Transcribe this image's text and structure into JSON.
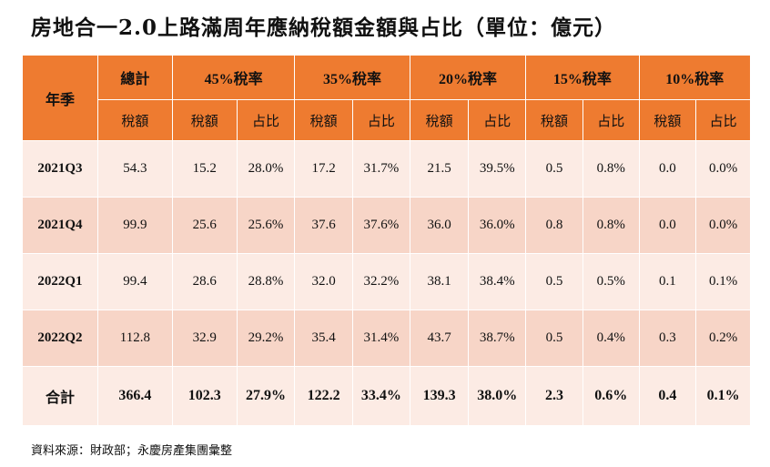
{
  "title": "房地合一2.0上路滿周年應納稅額金額與占比（單位：億元）",
  "header": {
    "season": "年季",
    "groups": [
      "總計",
      "45%稅率",
      "35%稅率",
      "20%稅率",
      "15%稅率",
      "10%稅率"
    ],
    "sub_tax": "稅額",
    "sub_share": "占比"
  },
  "rows": [
    {
      "quarter": "2021Q3",
      "values": [
        "54.3",
        "15.2",
        "28.0%",
        "17.2",
        "31.7%",
        "21.5",
        "39.5%",
        "0.5",
        "0.8%",
        "0.0",
        "0.0%"
      ]
    },
    {
      "quarter": "2021Q4",
      "values": [
        "99.9",
        "25.6",
        "25.6%",
        "37.6",
        "37.6%",
        "36.0",
        "36.0%",
        "0.8",
        "0.8%",
        "0.0",
        "0.0%"
      ]
    },
    {
      "quarter": "2022Q1",
      "values": [
        "99.4",
        "28.6",
        "28.8%",
        "32.0",
        "32.2%",
        "38.1",
        "38.4%",
        "0.5",
        "0.5%",
        "0.1",
        "0.1%"
      ]
    },
    {
      "quarter": "2022Q2",
      "values": [
        "112.8",
        "32.9",
        "29.2%",
        "35.4",
        "31.4%",
        "43.7",
        "38.7%",
        "0.5",
        "0.4%",
        "0.3",
        "0.2%"
      ]
    }
  ],
  "total": {
    "label": "合計",
    "values": [
      "366.4",
      "102.3",
      "27.9%",
      "122.2",
      "33.4%",
      "139.3",
      "38.0%",
      "2.3",
      "0.6%",
      "0.4",
      "0.1%"
    ]
  },
  "source": "資料來源：財政部；永慶房產集團彙整",
  "colors": {
    "header": "#ee7b30",
    "row_light": "#fcebe4",
    "row_dark": "#f7d5c7"
  }
}
